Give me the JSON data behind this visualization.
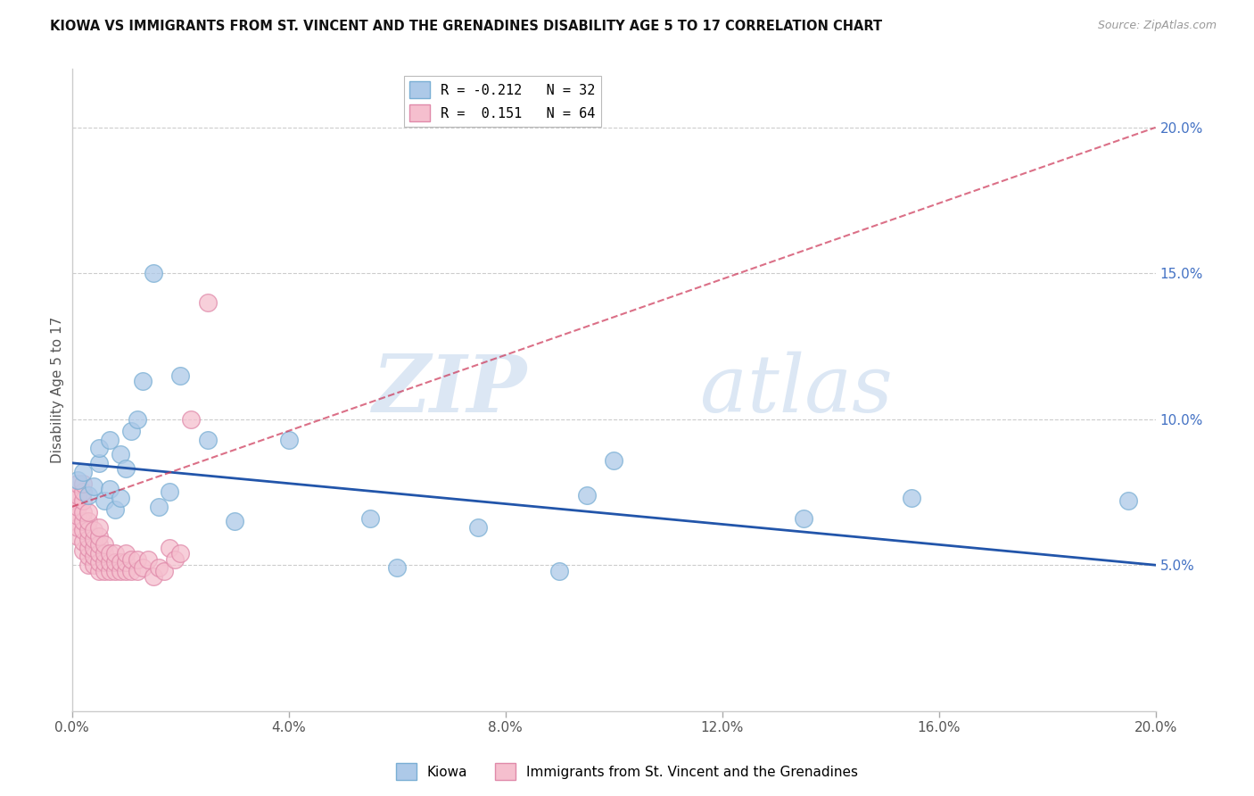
{
  "title": "KIOWA VS IMMIGRANTS FROM ST. VINCENT AND THE GRENADINES DISABILITY AGE 5 TO 17 CORRELATION CHART",
  "source": "Source: ZipAtlas.com",
  "ylabel": "Disability Age 5 to 17",
  "xlim": [
    0,
    0.2
  ],
  "ylim": [
    0,
    0.22
  ],
  "xticks": [
    0.0,
    0.04,
    0.08,
    0.12,
    0.16,
    0.2
  ],
  "yticks": [
    0.05,
    0.1,
    0.15,
    0.2
  ],
  "ytick_labels": [
    "5.0%",
    "10.0%",
    "15.0%",
    "20.0%"
  ],
  "xtick_labels": [
    "0.0%",
    "4.0%",
    "8.0%",
    "12.0%",
    "16.0%",
    "20.0%"
  ],
  "kiowa_color": "#adc9e8",
  "kiowa_edge_color": "#7aafd4",
  "immigrants_color": "#f5bfce",
  "immigrants_edge_color": "#e08aaa",
  "kiowa_line_color": "#2255aa",
  "immigrants_line_color": "#cc3355",
  "watermark_zip": "ZIP",
  "watermark_atlas": "atlas",
  "legend_label1": "R = -0.212   N = 32",
  "legend_label2": "R =  0.151   N = 64",
  "kiowa_x": [
    0.001,
    0.002,
    0.003,
    0.004,
    0.005,
    0.005,
    0.006,
    0.007,
    0.007,
    0.008,
    0.009,
    0.009,
    0.01,
    0.011,
    0.012,
    0.013,
    0.015,
    0.016,
    0.018,
    0.02,
    0.025,
    0.03,
    0.04,
    0.055,
    0.06,
    0.075,
    0.09,
    0.095,
    0.1,
    0.135,
    0.155,
    0.195
  ],
  "kiowa_y": [
    0.079,
    0.082,
    0.074,
    0.077,
    0.085,
    0.09,
    0.072,
    0.076,
    0.093,
    0.069,
    0.073,
    0.088,
    0.083,
    0.096,
    0.1,
    0.113,
    0.15,
    0.07,
    0.075,
    0.115,
    0.093,
    0.065,
    0.093,
    0.066,
    0.049,
    0.063,
    0.048,
    0.074,
    0.086,
    0.066,
    0.073,
    0.072
  ],
  "immigrants_x": [
    0.0,
    0.0,
    0.0,
    0.001,
    0.001,
    0.001,
    0.001,
    0.001,
    0.001,
    0.002,
    0.002,
    0.002,
    0.002,
    0.002,
    0.002,
    0.002,
    0.002,
    0.003,
    0.003,
    0.003,
    0.003,
    0.003,
    0.003,
    0.003,
    0.004,
    0.004,
    0.004,
    0.004,
    0.004,
    0.005,
    0.005,
    0.005,
    0.005,
    0.005,
    0.005,
    0.006,
    0.006,
    0.006,
    0.006,
    0.007,
    0.007,
    0.007,
    0.008,
    0.008,
    0.008,
    0.009,
    0.009,
    0.01,
    0.01,
    0.01,
    0.011,
    0.011,
    0.012,
    0.012,
    0.013,
    0.014,
    0.015,
    0.016,
    0.017,
    0.018,
    0.019,
    0.02,
    0.022,
    0.025
  ],
  "immigrants_y": [
    0.065,
    0.068,
    0.073,
    0.06,
    0.063,
    0.067,
    0.07,
    0.074,
    0.078,
    0.055,
    0.058,
    0.062,
    0.065,
    0.068,
    0.072,
    0.075,
    0.078,
    0.05,
    0.053,
    0.056,
    0.059,
    0.062,
    0.065,
    0.068,
    0.05,
    0.053,
    0.056,
    0.059,
    0.062,
    0.048,
    0.051,
    0.054,
    0.057,
    0.06,
    0.063,
    0.048,
    0.051,
    0.054,
    0.057,
    0.048,
    0.051,
    0.054,
    0.048,
    0.051,
    0.054,
    0.048,
    0.051,
    0.048,
    0.051,
    0.054,
    0.048,
    0.052,
    0.048,
    0.052,
    0.049,
    0.052,
    0.046,
    0.049,
    0.048,
    0.056,
    0.052,
    0.054,
    0.1,
    0.14
  ]
}
